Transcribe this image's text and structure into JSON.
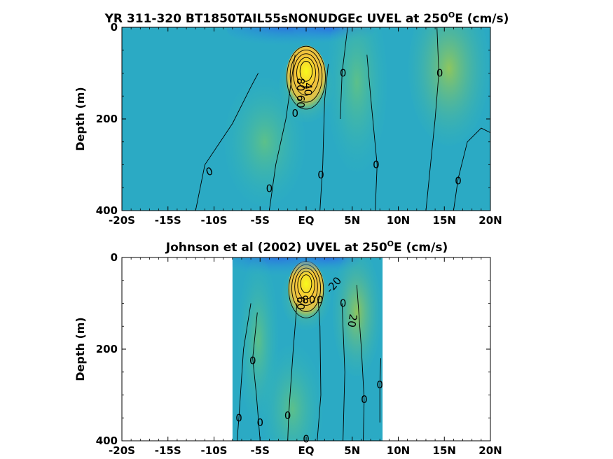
{
  "colors": {
    "background": "#29a3d8",
    "missing": "#ffffff",
    "contour": "#000000"
  },
  "chart_data": [
    {
      "type": "heatmap",
      "title_main": "YR 311-320 BT1850TAIL55sNONUDGEc UVEL at 250",
      "title_sup": "O",
      "title_end": "E (cm/s)",
      "ylabel": "Depth (m)",
      "x_ticks": [
        "-20S",
        "-15S",
        "-10S",
        "-5S",
        "EQ",
        "5N",
        "10N",
        "15N",
        "20N"
      ],
      "x_tick_values": [
        -20,
        -15,
        -10,
        -5,
        0,
        5,
        10,
        15,
        20
      ],
      "y_ticks": [
        "0",
        "200",
        "400"
      ],
      "y_tick_values": [
        0,
        200,
        400
      ],
      "xlim": [
        -20,
        20
      ],
      "ylim": [
        0,
        400
      ],
      "y_reversed": true,
      "data_xlim": [
        -20,
        20
      ],
      "colorbar": false,
      "features": [
        {
          "kind": "jet",
          "lat": 0,
          "depth": 110,
          "value": 80,
          "sx": 1.0,
          "sy": 50
        },
        {
          "kind": "neg",
          "lat": -2,
          "depth": 15,
          "value": -20,
          "sx": 3.0,
          "sy": 25
        },
        {
          "kind": "neg",
          "lat": 3,
          "depth": 20,
          "value": -15,
          "sx": 2.0,
          "sy": 20
        },
        {
          "kind": "pos",
          "lat": 5.5,
          "depth": 120,
          "value": 12,
          "sx": 1.5,
          "sy": 140
        },
        {
          "kind": "pos",
          "lat": 15.5,
          "depth": 90,
          "value": 14,
          "sx": 2.0,
          "sy": 120
        },
        {
          "kind": "pos",
          "lat": -4.5,
          "depth": 250,
          "value": 8,
          "sx": 2.0,
          "sy": 100
        }
      ],
      "contour_labels": [
        {
          "text": "0",
          "lat": 4,
          "depth": 100,
          "rotate": 0
        },
        {
          "text": "0",
          "lat": 14.5,
          "depth": 100,
          "rotate": 0
        },
        {
          "text": "0",
          "lat": -1.2,
          "depth": 188,
          "rotate": 0
        },
        {
          "text": "0",
          "lat": -10.5,
          "depth": 315,
          "rotate": -20
        },
        {
          "text": "0",
          "lat": -4,
          "depth": 352,
          "rotate": 0
        },
        {
          "text": "0",
          "lat": 1.6,
          "depth": 322,
          "rotate": 0
        },
        {
          "text": "0",
          "lat": 7.6,
          "depth": 300,
          "rotate": 0
        },
        {
          "text": "0",
          "lat": 16.5,
          "depth": 335,
          "rotate": 0
        },
        {
          "text": "80",
          "lat": -0.6,
          "depth": 125,
          "rotate": 90
        },
        {
          "text": "60",
          "lat": -0.6,
          "depth": 162,
          "rotate": 90
        },
        {
          "text": "40",
          "lat": 0.2,
          "depth": 135,
          "rotate": 90
        }
      ]
    },
    {
      "type": "heatmap",
      "title_main": "Johnson et al (2002) UVEL at 250",
      "title_sup": "O",
      "title_end": "E (cm/s)",
      "ylabel": "Depth (m)",
      "x_ticks": [
        "-20S",
        "-15S",
        "-10S",
        "-5S",
        "EQ",
        "5N",
        "10N",
        "15N",
        "20N"
      ],
      "x_tick_values": [
        -20,
        -15,
        -10,
        -5,
        0,
        5,
        10,
        15,
        20
      ],
      "y_ticks": [
        "0",
        "200",
        "400"
      ],
      "y_tick_values": [
        0,
        200,
        400
      ],
      "xlim": [
        -20,
        20
      ],
      "ylim": [
        0,
        400
      ],
      "y_reversed": true,
      "data_xlim": [
        -8,
        8.3
      ],
      "colorbar": false,
      "features": [
        {
          "kind": "jet",
          "lat": 0,
          "depth": 70,
          "value": 90,
          "sx": 0.9,
          "sy": 45
        },
        {
          "kind": "neg",
          "lat": -3,
          "depth": 15,
          "value": -25,
          "sx": 2.5,
          "sy": 25
        },
        {
          "kind": "neg",
          "lat": 2.5,
          "depth": 20,
          "value": -20,
          "sx": 1.5,
          "sy": 20
        },
        {
          "kind": "pos",
          "lat": 5.5,
          "depth": 120,
          "value": 14,
          "sx": 1.2,
          "sy": 100
        },
        {
          "kind": "pos",
          "lat": -5.2,
          "depth": 180,
          "value": 10,
          "sx": 1.0,
          "sy": 130
        },
        {
          "kind": "pos",
          "lat": -1.5,
          "depth": 330,
          "value": 8,
          "sx": 1.5,
          "sy": 100
        }
      ],
      "contour_labels": [
        {
          "text": "-20",
          "lat": 3,
          "depth": 60,
          "rotate": -50
        },
        {
          "text": "80",
          "lat": 0.3,
          "depth": 92,
          "rotate": 0
        },
        {
          "text": "60",
          "lat": -0.6,
          "depth": 100,
          "rotate": 90
        },
        {
          "text": "20",
          "lat": 5,
          "depth": 138,
          "rotate": 100
        },
        {
          "text": "0",
          "lat": 1.5,
          "depth": 92,
          "rotate": 0
        },
        {
          "text": "0",
          "lat": 4,
          "depth": 100,
          "rotate": 0
        },
        {
          "text": "0",
          "lat": -5.8,
          "depth": 225,
          "rotate": 0
        },
        {
          "text": "0",
          "lat": -7.3,
          "depth": 350,
          "rotate": 0
        },
        {
          "text": "0",
          "lat": -5,
          "depth": 360,
          "rotate": 0
        },
        {
          "text": "0",
          "lat": -2,
          "depth": 345,
          "rotate": 0
        },
        {
          "text": "0",
          "lat": 6.3,
          "depth": 310,
          "rotate": 0
        },
        {
          "text": "0",
          "lat": 8,
          "depth": 278,
          "rotate": 0
        },
        {
          "text": "0",
          "lat": 0,
          "depth": 396,
          "rotate": 0
        }
      ]
    }
  ]
}
